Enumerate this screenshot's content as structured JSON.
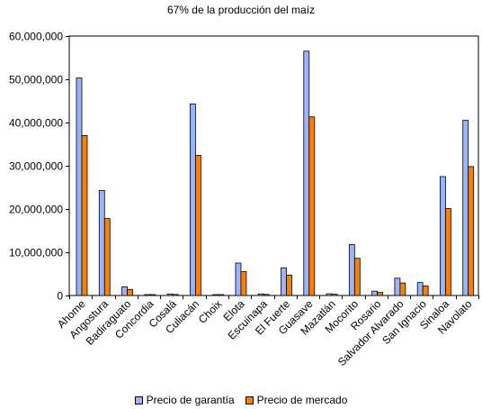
{
  "chart_data": {
    "type": "bar",
    "title": "67% de la producción del maíz",
    "xlabel": "",
    "ylabel": "",
    "ylim": [
      0,
      60000000
    ],
    "yticks": [
      0,
      10000000,
      20000000,
      30000000,
      40000000,
      50000000,
      60000000
    ],
    "ytick_labels": [
      "0",
      "10,000,000",
      "20,000,000",
      "30,000,000",
      "40,000,000",
      "50,000,000",
      "60,000,000"
    ],
    "grid": false,
    "legend_position": "bottom",
    "categories": [
      "Ahome",
      "Angostura",
      "Badiraguato",
      "Concordia",
      "Cosalá",
      "Culiacán",
      "Choix",
      "Elota",
      "Escuinapa",
      "El Fuerte",
      "Guasave",
      "Mazatlán",
      "Mocorito",
      "Rosario",
      "Salvador Alvarado",
      "San Ignacio",
      "Sinaloa",
      "Navolato"
    ],
    "series": [
      {
        "name": "Precio de garantía",
        "color": "#99B3FF",
        "values": [
          50300000,
          24300000,
          2000000,
          150000,
          350000,
          44300000,
          100000,
          7500000,
          350000,
          6400000,
          56500000,
          400000,
          11800000,
          1000000,
          4000000,
          3000000,
          27500000,
          40500000
        ]
      },
      {
        "name": "Precio de mercado",
        "color": "#FF7F00",
        "values": [
          37000000,
          17800000,
          1400000,
          100000,
          250000,
          32400000,
          80000,
          5500000,
          250000,
          4700000,
          41300000,
          300000,
          8600000,
          700000,
          2900000,
          2200000,
          20100000,
          29800000
        ]
      }
    ]
  }
}
